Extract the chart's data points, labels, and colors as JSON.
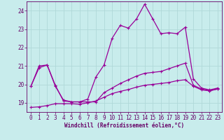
{
  "xlabel": "Windchill (Refroidissement éolien,°C)",
  "background_color": "#c8ecec",
  "grid_color": "#b0d8d8",
  "line_color": "#990099",
  "spine_color": "#660066",
  "tick_color": "#660066",
  "xlim": [
    -0.5,
    23.5
  ],
  "ylim": [
    18.5,
    24.5
  ],
  "yticks": [
    19,
    20,
    21,
    22,
    23,
    24
  ],
  "xticks": [
    0,
    1,
    2,
    3,
    4,
    5,
    6,
    7,
    8,
    9,
    10,
    11,
    12,
    13,
    14,
    15,
    16,
    17,
    18,
    19,
    20,
    21,
    22,
    23
  ],
  "series1_x": [
    0,
    1,
    2,
    3,
    4,
    5,
    6,
    7,
    8,
    9,
    10,
    11,
    12,
    13,
    14,
    15,
    16,
    17,
    18,
    19,
    20,
    21,
    22,
    23
  ],
  "series1_y": [
    19.9,
    20.9,
    21.05,
    19.95,
    19.1,
    19.05,
    19.05,
    19.2,
    20.4,
    21.05,
    22.5,
    23.2,
    23.05,
    23.55,
    24.35,
    23.55,
    22.75,
    22.8,
    22.75,
    23.1,
    20.3,
    19.8,
    19.7,
    19.8
  ],
  "series2_x": [
    0,
    1,
    2,
    3,
    4,
    5,
    6,
    7,
    8,
    9,
    10,
    11,
    12,
    13,
    14,
    15,
    16,
    17,
    18,
    19,
    20,
    21,
    22,
    23
  ],
  "series2_y": [
    19.9,
    21.0,
    21.05,
    19.9,
    19.15,
    19.05,
    19.05,
    19.05,
    19.05,
    19.55,
    19.8,
    20.05,
    20.25,
    20.45,
    20.6,
    20.65,
    20.7,
    20.85,
    21.0,
    21.15,
    19.95,
    19.75,
    19.65,
    19.75
  ],
  "series3_x": [
    0,
    1,
    2,
    3,
    4,
    5,
    6,
    7,
    8,
    9,
    10,
    11,
    12,
    13,
    14,
    15,
    16,
    17,
    18,
    19,
    20,
    21,
    22,
    23
  ],
  "series3_y": [
    18.75,
    18.78,
    18.85,
    18.95,
    18.95,
    18.95,
    18.92,
    19.0,
    19.1,
    19.3,
    19.5,
    19.62,
    19.72,
    19.85,
    19.95,
    20.0,
    20.05,
    20.1,
    20.2,
    20.25,
    19.9,
    19.7,
    19.65,
    19.75
  ],
  "xlabel_fontsize": 5.5,
  "tick_fontsize": 5.5,
  "linewidth": 0.9,
  "markersize": 2.5
}
